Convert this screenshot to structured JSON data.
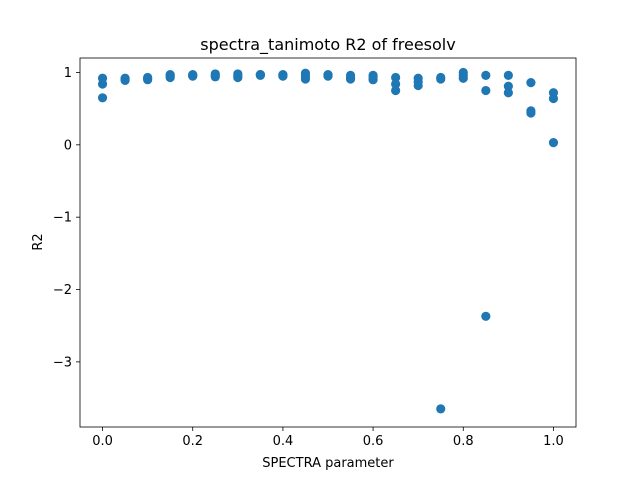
{
  "chart_data": {
    "type": "scatter",
    "title": "spectra_tanimoto R2 of freesolv",
    "xlabel": "SPECTRA parameter",
    "ylabel": "R2",
    "xlim": [
      -0.05,
      1.05
    ],
    "ylim": [
      -3.9,
      1.2
    ],
    "xticks": [
      0.0,
      0.2,
      0.4,
      0.6,
      0.8,
      1.0
    ],
    "xtick_labels": [
      "0.0",
      "0.2",
      "0.4",
      "0.6",
      "0.8",
      "1.0"
    ],
    "yticks": [
      -3,
      -2,
      -1,
      0,
      1
    ],
    "ytick_labels": [
      "−3",
      "−2",
      "−1",
      "0",
      "1"
    ],
    "grid": false,
    "marker_color": "#1f77b4",
    "points": [
      {
        "x": 0.0,
        "y": 0.92
      },
      {
        "x": 0.0,
        "y": 0.84
      },
      {
        "x": 0.0,
        "y": 0.65
      },
      {
        "x": 0.05,
        "y": 0.92
      },
      {
        "x": 0.05,
        "y": 0.89
      },
      {
        "x": 0.05,
        "y": 0.91
      },
      {
        "x": 0.1,
        "y": 0.93
      },
      {
        "x": 0.1,
        "y": 0.9
      },
      {
        "x": 0.1,
        "y": 0.92
      },
      {
        "x": 0.15,
        "y": 0.97
      },
      {
        "x": 0.15,
        "y": 0.93
      },
      {
        "x": 0.15,
        "y": 0.95
      },
      {
        "x": 0.2,
        "y": 0.97
      },
      {
        "x": 0.2,
        "y": 0.95
      },
      {
        "x": 0.2,
        "y": 0.96
      },
      {
        "x": 0.25,
        "y": 0.98
      },
      {
        "x": 0.25,
        "y": 0.94
      },
      {
        "x": 0.25,
        "y": 0.96
      },
      {
        "x": 0.3,
        "y": 0.98
      },
      {
        "x": 0.3,
        "y": 0.93
      },
      {
        "x": 0.3,
        "y": 0.95
      },
      {
        "x": 0.35,
        "y": 0.97
      },
      {
        "x": 0.35,
        "y": 0.96
      },
      {
        "x": 0.35,
        "y": 0.97
      },
      {
        "x": 0.4,
        "y": 0.97
      },
      {
        "x": 0.4,
        "y": 0.95
      },
      {
        "x": 0.4,
        "y": 0.96
      },
      {
        "x": 0.45,
        "y": 0.99
      },
      {
        "x": 0.45,
        "y": 0.91
      },
      {
        "x": 0.45,
        "y": 0.95
      },
      {
        "x": 0.5,
        "y": 0.97
      },
      {
        "x": 0.5,
        "y": 0.95
      },
      {
        "x": 0.5,
        "y": 0.96
      },
      {
        "x": 0.55,
        "y": 0.96
      },
      {
        "x": 0.55,
        "y": 0.91
      },
      {
        "x": 0.55,
        "y": 0.93
      },
      {
        "x": 0.6,
        "y": 0.96
      },
      {
        "x": 0.6,
        "y": 0.9
      },
      {
        "x": 0.6,
        "y": 0.93
      },
      {
        "x": 0.65,
        "y": 0.93
      },
      {
        "x": 0.65,
        "y": 0.84
      },
      {
        "x": 0.65,
        "y": 0.75
      },
      {
        "x": 0.7,
        "y": 0.92
      },
      {
        "x": 0.7,
        "y": 0.87
      },
      {
        "x": 0.7,
        "y": 0.82
      },
      {
        "x": 0.75,
        "y": 0.93
      },
      {
        "x": 0.75,
        "y": 0.91
      },
      {
        "x": 0.75,
        "y": -3.65
      },
      {
        "x": 0.8,
        "y": 1.0
      },
      {
        "x": 0.8,
        "y": 0.92
      },
      {
        "x": 0.8,
        "y": 0.96
      },
      {
        "x": 0.85,
        "y": 0.96
      },
      {
        "x": 0.85,
        "y": 0.75
      },
      {
        "x": 0.85,
        "y": -2.37
      },
      {
        "x": 0.9,
        "y": 0.96
      },
      {
        "x": 0.9,
        "y": 0.81
      },
      {
        "x": 0.9,
        "y": 0.72
      },
      {
        "x": 0.95,
        "y": 0.86
      },
      {
        "x": 0.95,
        "y": 0.47
      },
      {
        "x": 0.95,
        "y": 0.44
      },
      {
        "x": 1.0,
        "y": 0.72
      },
      {
        "x": 1.0,
        "y": 0.64
      },
      {
        "x": 1.0,
        "y": 0.03
      }
    ]
  }
}
